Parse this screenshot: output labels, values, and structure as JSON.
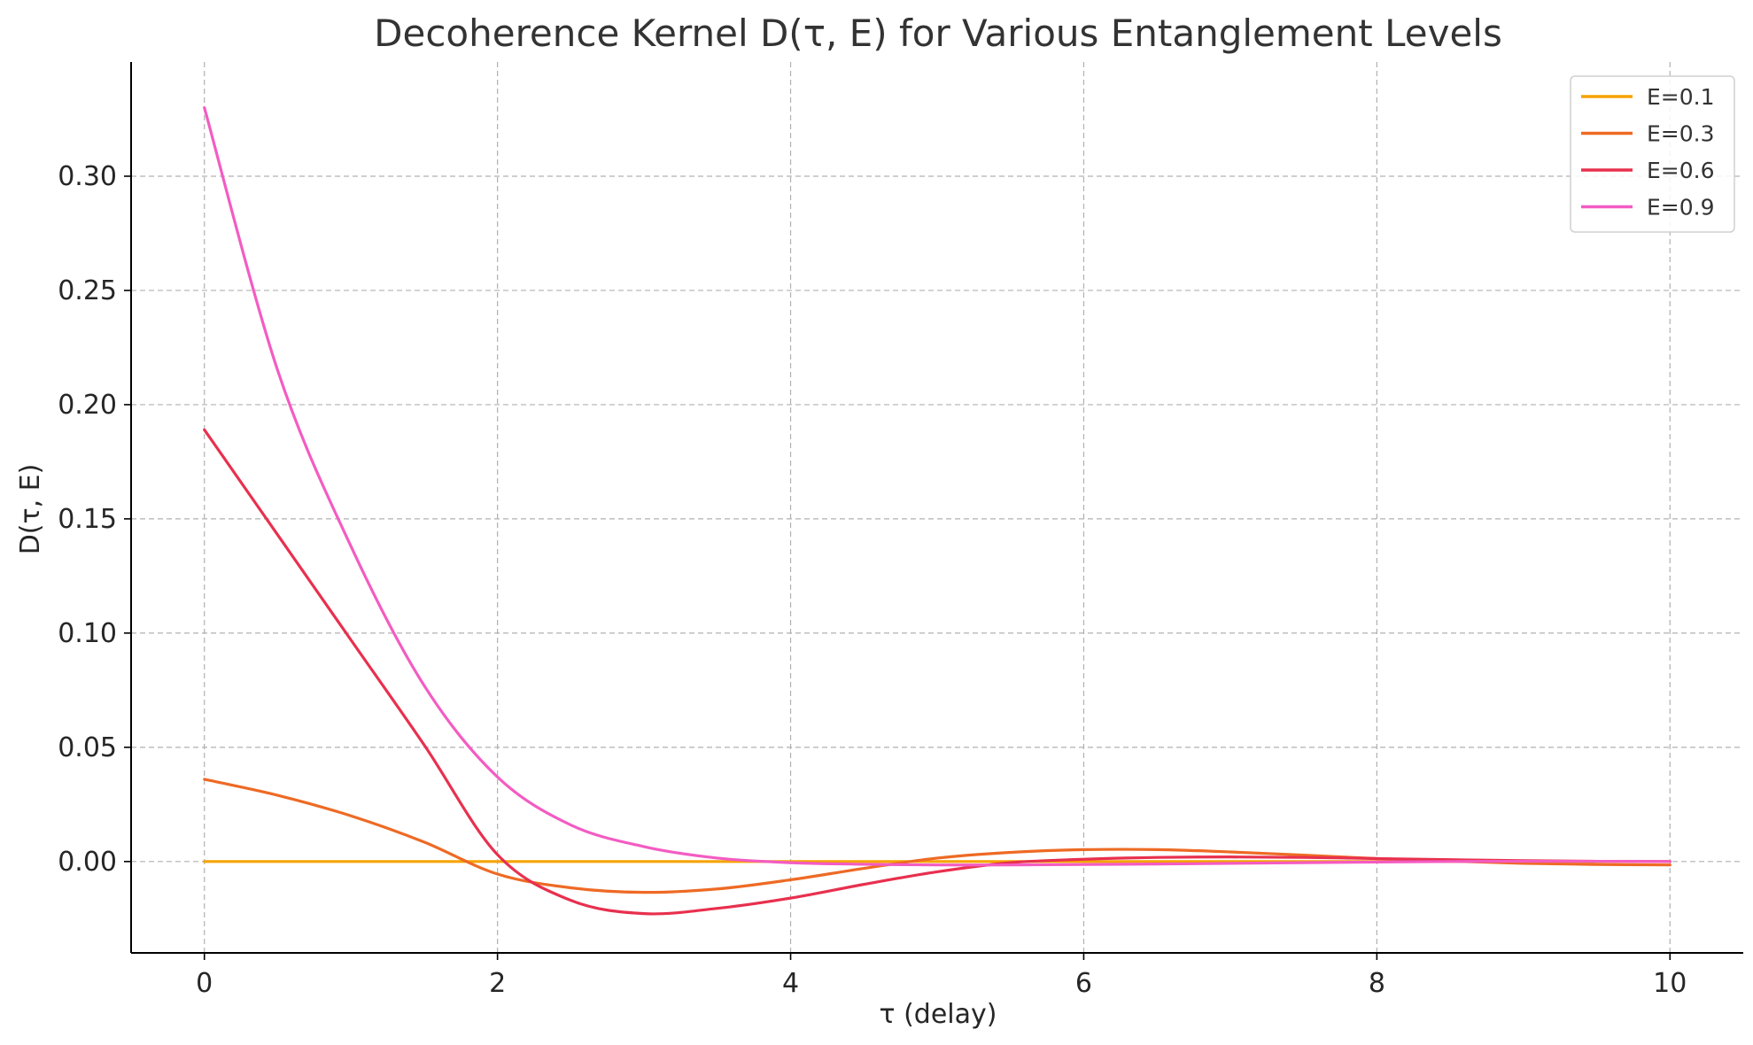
{
  "chart_data": {
    "type": "line",
    "title": "Decoherence Kernel D(τ, E) for Various Entanglement Levels",
    "xlabel": "τ (delay)",
    "ylabel": "D(τ, E)",
    "xlim": [
      -0.5,
      10.5
    ],
    "ylim": [
      -0.04,
      0.35
    ],
    "xticks": [
      0,
      2,
      4,
      6,
      8,
      10
    ],
    "xtick_labels": [
      "0",
      "2",
      "4",
      "6",
      "8",
      "10"
    ],
    "yticks": [
      0.0,
      0.05,
      0.1,
      0.15,
      0.2,
      0.25,
      0.3
    ],
    "ytick_labels": [
      "0.00",
      "0.05",
      "0.10",
      "0.15",
      "0.20",
      "0.25",
      "0.30"
    ],
    "grid": true,
    "legend_position": "top-right",
    "x": [
      0,
      0.5,
      1,
      1.5,
      2,
      2.5,
      3,
      3.5,
      4,
      4.5,
      5,
      5.5,
      6,
      6.5,
      7,
      7.5,
      8,
      8.5,
      9,
      9.5,
      10
    ],
    "series": [
      {
        "name": "E=0.1",
        "color": "#f5a300",
        "values": [
          0.0,
          0.0,
          0.0,
          0.0,
          0.0,
          0.0,
          0.0,
          0.0,
          0.0,
          0.0,
          0.0,
          0.0,
          0.0,
          0.0,
          0.0,
          0.0,
          0.0,
          0.0,
          0.0,
          0.0,
          0.0
        ]
      },
      {
        "name": "E=0.3",
        "color": "#ee6a24",
        "values": [
          0.036,
          0.029,
          0.02,
          0.0085,
          -0.0055,
          -0.0115,
          -0.0135,
          -0.012,
          -0.008,
          -0.003,
          0.0015,
          0.004,
          0.0052,
          0.0052,
          0.0042,
          0.0028,
          0.0013,
          0.0002,
          -0.0008,
          -0.0013,
          -0.0015
        ]
      },
      {
        "name": "E=0.6",
        "color": "#e8304e",
        "values": [
          0.189,
          0.143,
          0.097,
          0.051,
          0.003,
          -0.017,
          -0.0228,
          -0.0205,
          -0.016,
          -0.01,
          -0.0045,
          -0.0005,
          0.001,
          0.0018,
          0.002,
          0.0018,
          0.0013,
          0.0008,
          0.0004,
          0.0001,
          0.0
        ]
      },
      {
        "name": "E=0.9",
        "color": "#f35cc2",
        "values": [
          0.33,
          0.215,
          0.138,
          0.077,
          0.037,
          0.016,
          0.0065,
          0.0015,
          -0.0005,
          -0.0012,
          -0.0015,
          -0.0015,
          -0.0013,
          -0.0011,
          -0.0008,
          -0.0005,
          -0.0002,
          0.0,
          0.0001,
          0.0001,
          0.0
        ]
      }
    ]
  }
}
